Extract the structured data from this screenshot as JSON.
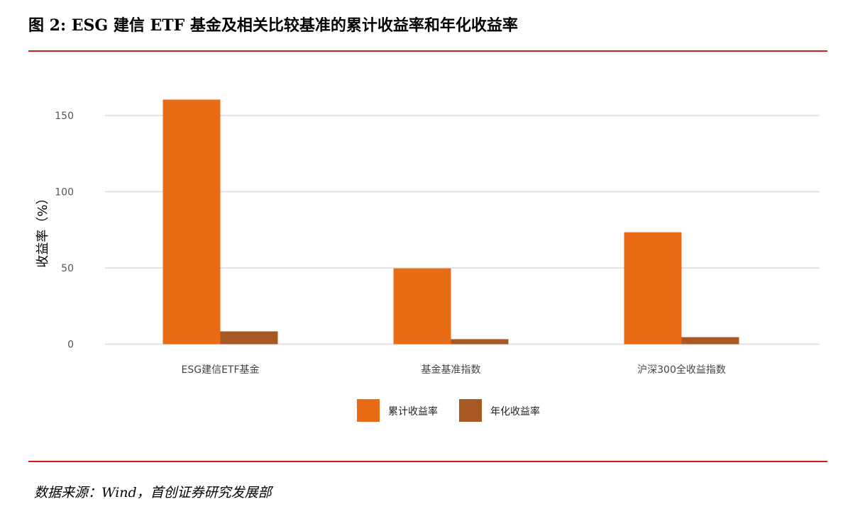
{
  "title": "图 2: ESG 建信 ETF 基金及相关比较基准的累计收益率和年化收益率",
  "source": "数据来源：Wind，首创证券研究发展部",
  "chart_data": {
    "type": "bar",
    "title": "图 2: ESG 建信 ETF 基金及相关比较基准的累计收益率和年化收益率",
    "categories": [
      "ESG建信ETF基金",
      "基金基准指数",
      "沪深300全收益指数"
    ],
    "series": [
      {
        "name": "累计收益率",
        "values": [
          160.4,
          49.7,
          73.4
        ],
        "color": "#ea6b16"
      },
      {
        "name": "年化收益率",
        "values": [
          8.4,
          3.3,
          4.6
        ],
        "color": "#a85822"
      }
    ],
    "xlabel": "",
    "ylabel": "收益率（%）",
    "ylim": [
      0,
      170
    ],
    "yticks": [
      0,
      50,
      100,
      150
    ],
    "grid": true,
    "legend": "bottom-center"
  }
}
